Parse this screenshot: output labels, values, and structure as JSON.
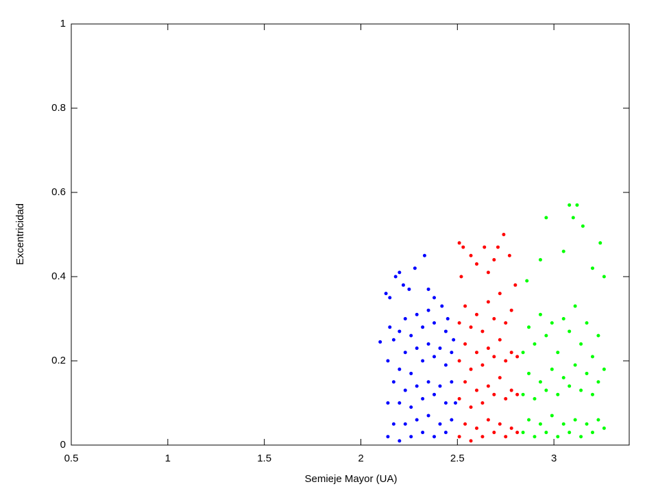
{
  "chart_data": {
    "type": "scatter",
    "xlabel": "Semieje Mayor (UA)",
    "ylabel": "Excentricidad",
    "xlim": [
      0.5,
      3.39
    ],
    "ylim": [
      0,
      1
    ],
    "xticks": [
      0.5,
      1,
      1.5,
      2,
      2.5,
      3
    ],
    "yticks": [
      0,
      0.2,
      0.4,
      0.6,
      0.8,
      1
    ],
    "series": [
      {
        "color": "#0000ff",
        "x": [
          2.1,
          2.13,
          2.15,
          2.18,
          2.2,
          2.22,
          2.25,
          2.28,
          2.33,
          2.35,
          2.38,
          2.42,
          2.45,
          2.48,
          2.14,
          2.14,
          2.14,
          2.15,
          2.17,
          2.17,
          2.17,
          2.2,
          2.2,
          2.2,
          2.2,
          2.23,
          2.23,
          2.23,
          2.23,
          2.26,
          2.26,
          2.26,
          2.26,
          2.29,
          2.29,
          2.29,
          2.29,
          2.32,
          2.32,
          2.32,
          2.32,
          2.35,
          2.35,
          2.35,
          2.35,
          2.38,
          2.38,
          2.38,
          2.38,
          2.41,
          2.41,
          2.41,
          2.44,
          2.44,
          2.44,
          2.44,
          2.47,
          2.47,
          2.47,
          2.49
        ],
        "values": [
          0.245,
          0.36,
          0.35,
          0.4,
          0.41,
          0.38,
          0.37,
          0.42,
          0.45,
          0.37,
          0.35,
          0.33,
          0.3,
          0.25,
          0.02,
          0.1,
          0.2,
          0.28,
          0.05,
          0.15,
          0.25,
          0.01,
          0.1,
          0.18,
          0.27,
          0.05,
          0.13,
          0.22,
          0.3,
          0.02,
          0.09,
          0.17,
          0.26,
          0.06,
          0.14,
          0.23,
          0.31,
          0.03,
          0.11,
          0.2,
          0.28,
          0.07,
          0.15,
          0.24,
          0.32,
          0.02,
          0.12,
          0.21,
          0.29,
          0.05,
          0.14,
          0.23,
          0.03,
          0.1,
          0.19,
          0.27,
          0.06,
          0.15,
          0.22,
          0.1
        ]
      },
      {
        "color": "#ff0000",
        "x": [
          2.51,
          2.53,
          2.57,
          2.6,
          2.64,
          2.69,
          2.71,
          2.74,
          2.77,
          2.8,
          2.52,
          2.66,
          2.51,
          2.51,
          2.51,
          2.51,
          2.54,
          2.54,
          2.54,
          2.54,
          2.57,
          2.57,
          2.57,
          2.57,
          2.6,
          2.6,
          2.6,
          2.6,
          2.63,
          2.63,
          2.63,
          2.63,
          2.66,
          2.66,
          2.66,
          2.66,
          2.69,
          2.69,
          2.69,
          2.69,
          2.72,
          2.72,
          2.72,
          2.72,
          2.75,
          2.75,
          2.75,
          2.75,
          2.78,
          2.78,
          2.78,
          2.78,
          2.81,
          2.81,
          2.81
        ],
        "values": [
          0.48,
          0.47,
          0.45,
          0.43,
          0.47,
          0.44,
          0.47,
          0.5,
          0.45,
          0.38,
          0.4,
          0.41,
          0.02,
          0.11,
          0.2,
          0.29,
          0.05,
          0.15,
          0.24,
          0.33,
          0.01,
          0.09,
          0.18,
          0.28,
          0.04,
          0.13,
          0.22,
          0.31,
          0.02,
          0.1,
          0.19,
          0.27,
          0.06,
          0.14,
          0.23,
          0.34,
          0.03,
          0.12,
          0.21,
          0.3,
          0.05,
          0.16,
          0.25,
          0.36,
          0.02,
          0.11,
          0.2,
          0.29,
          0.04,
          0.13,
          0.22,
          0.32,
          0.03,
          0.12,
          0.21
        ]
      },
      {
        "color": "#00ff00",
        "x": [
          2.96,
          3.08,
          3.1,
          3.12,
          3.15,
          3.24,
          3.26,
          2.93,
          3.05,
          2.86,
          3.2,
          2.84,
          2.84,
          2.84,
          2.87,
          2.87,
          2.87,
          2.9,
          2.9,
          2.9,
          2.93,
          2.93,
          2.93,
          2.96,
          2.96,
          2.96,
          2.99,
          2.99,
          2.99,
          3.02,
          3.02,
          3.02,
          3.05,
          3.05,
          3.05,
          3.08,
          3.08,
          3.08,
          3.11,
          3.11,
          3.11,
          3.14,
          3.14,
          3.14,
          3.17,
          3.17,
          3.17,
          3.2,
          3.2,
          3.2,
          3.23,
          3.23,
          3.23,
          3.26,
          3.26
        ],
        "values": [
          0.54,
          0.57,
          0.54,
          0.57,
          0.52,
          0.48,
          0.4,
          0.44,
          0.46,
          0.39,
          0.42,
          0.03,
          0.12,
          0.22,
          0.06,
          0.17,
          0.28,
          0.02,
          0.11,
          0.24,
          0.05,
          0.15,
          0.31,
          0.03,
          0.13,
          0.26,
          0.07,
          0.18,
          0.29,
          0.02,
          0.12,
          0.22,
          0.05,
          0.16,
          0.3,
          0.03,
          0.14,
          0.27,
          0.06,
          0.19,
          0.33,
          0.02,
          0.13,
          0.24,
          0.05,
          0.17,
          0.29,
          0.03,
          0.12,
          0.21,
          0.06,
          0.15,
          0.26,
          0.04,
          0.18
        ]
      }
    ]
  }
}
